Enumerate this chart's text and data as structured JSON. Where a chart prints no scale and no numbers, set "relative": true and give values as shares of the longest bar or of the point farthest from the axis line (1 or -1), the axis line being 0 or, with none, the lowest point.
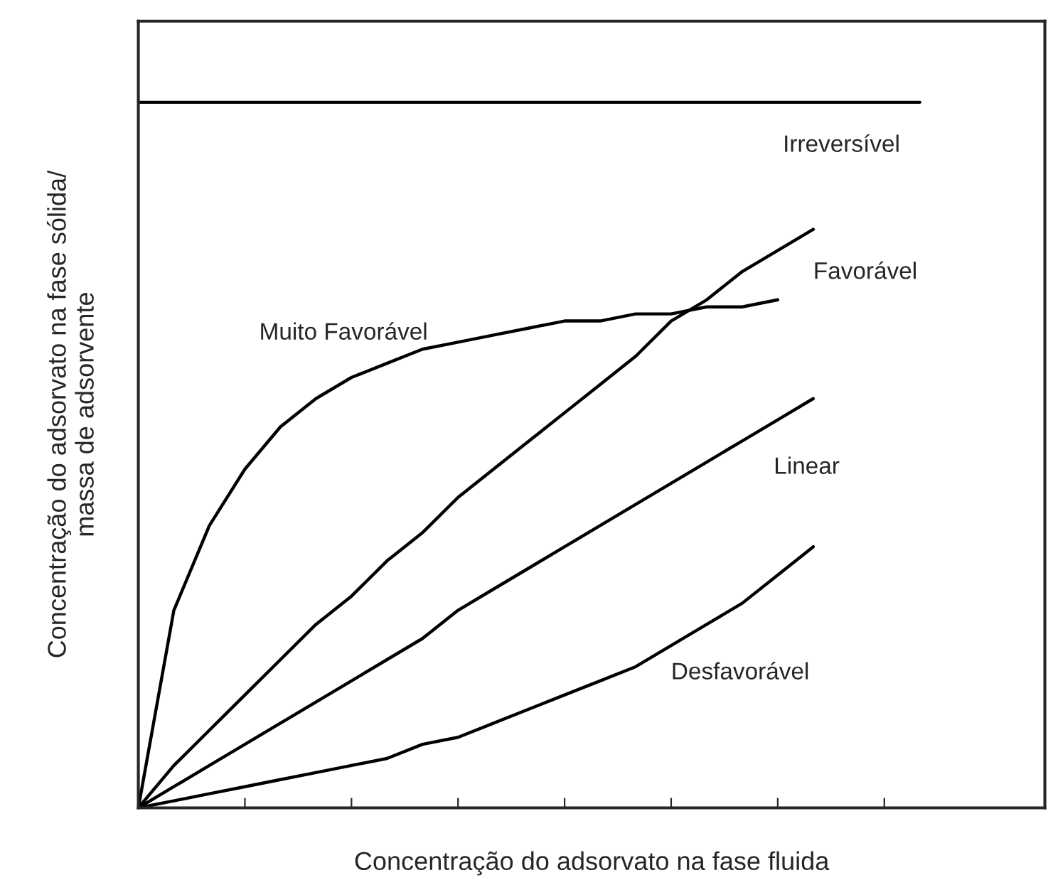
{
  "chart_data": {
    "type": "line",
    "relative": true,
    "xlabel": "Concentração do adsorvato na fase fluida",
    "ylabel": "Concentração do adsorvato na fase sólida/\nmassa de adsorvente",
    "categories": [
      null,
      null,
      null,
      null,
      null,
      null,
      null,
      null,
      null,
      null,
      null,
      null,
      null,
      null,
      null,
      null,
      null,
      null,
      null,
      null,
      null,
      null,
      null
    ],
    "series": [
      {
        "name": "Irreversível",
        "color": "#000000",
        "values": [
          1,
          1,
          1,
          1,
          1,
          1,
          1,
          1,
          1,
          1,
          1,
          1,
          1,
          1,
          1,
          1,
          1,
          1,
          1,
          1,
          1,
          1,
          1
        ]
      },
      {
        "name": "Favorável",
        "color": "#000000",
        "values": [
          0,
          0.06,
          0.11,
          0.16,
          0.21,
          0.26,
          0.3,
          0.35,
          0.39,
          0.44,
          0.48,
          0.52,
          0.56,
          0.6,
          0.64,
          0.69,
          0.72,
          0.76,
          0.79,
          0.82,
          null,
          null,
          null
        ]
      },
      {
        "name": "Muito Favorável",
        "color": "#000000",
        "values": [
          0,
          0.28,
          0.4,
          0.48,
          0.54,
          0.58,
          0.61,
          0.63,
          0.65,
          0.66,
          0.67,
          0.68,
          0.69,
          0.69,
          0.7,
          0.7,
          0.71,
          0.71,
          0.72,
          null,
          null,
          null,
          null
        ]
      },
      {
        "name": "Linear",
        "color": "#000000",
        "values": [
          0,
          0.03,
          0.06,
          0.09,
          0.12,
          0.15,
          0.18,
          0.21,
          0.24,
          0.28,
          0.31,
          0.34,
          0.37,
          0.4,
          0.43,
          0.46,
          0.49,
          0.52,
          0.55,
          0.58,
          null,
          null,
          null
        ]
      },
      {
        "name": "Desfavorável",
        "color": "#000000",
        "values": [
          0,
          0.01,
          0.02,
          0.03,
          0.04,
          0.05,
          0.06,
          0.07,
          0.09,
          0.1,
          0.12,
          0.14,
          0.16,
          0.18,
          0.2,
          0.23,
          0.26,
          0.29,
          0.33,
          0.37,
          null,
          null,
          null
        ]
      }
    ],
    "tick_labels": false,
    "grid": false,
    "legend": false,
    "marker": "none",
    "line_style": "solid"
  }
}
